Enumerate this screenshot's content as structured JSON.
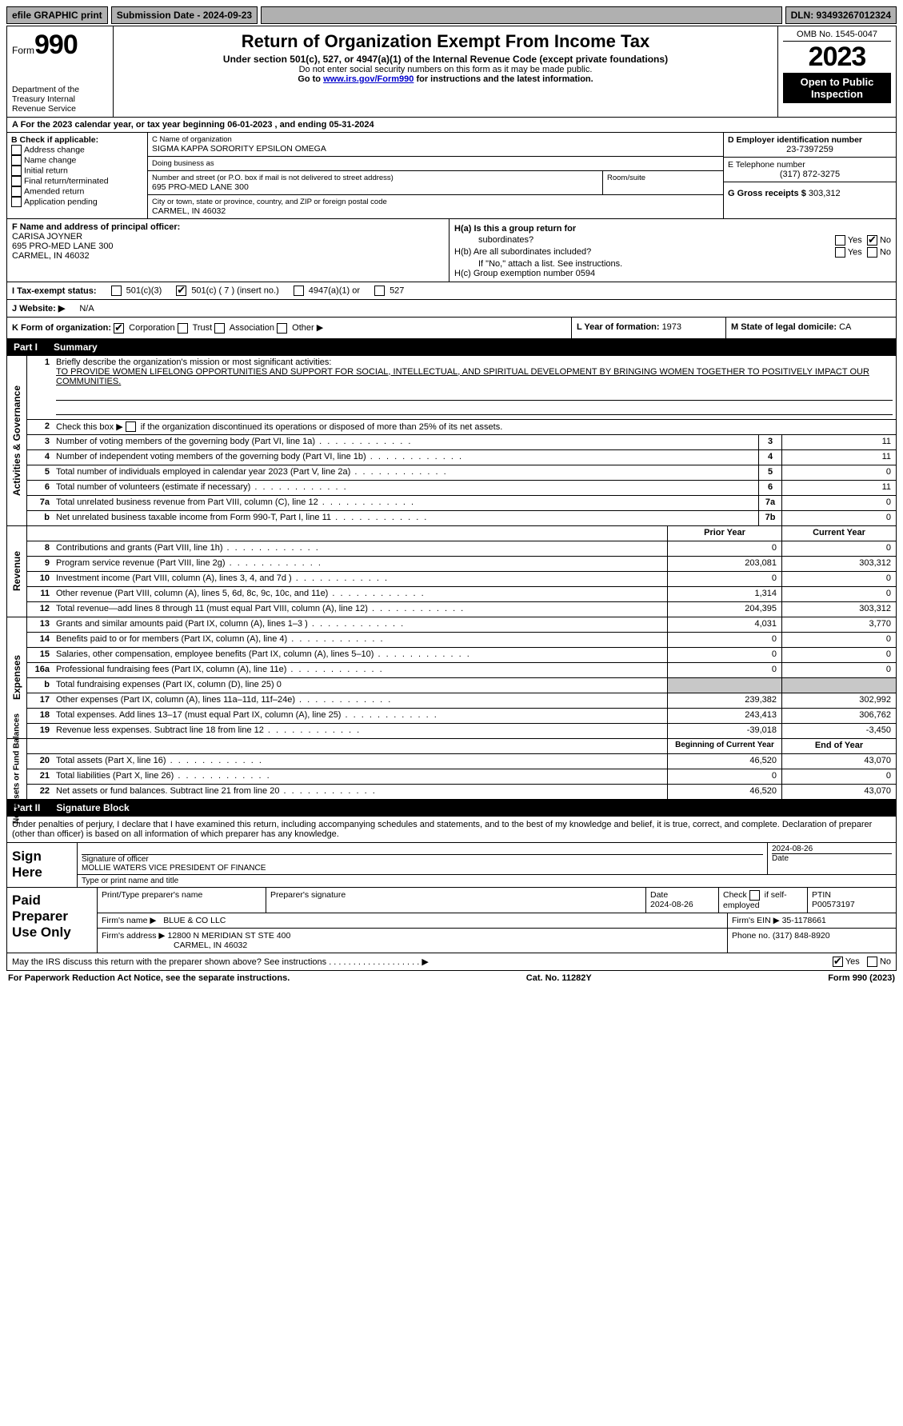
{
  "topbar": {
    "efile": "efile GRAPHIC print",
    "submission": "Submission Date - 2024-09-23",
    "dln": "DLN: 93493267012324"
  },
  "header": {
    "form_prefix": "Form",
    "form_number": "990",
    "dept": "Department of the Treasury\nInternal Revenue Service",
    "title": "Return of Organization Exempt From Income Tax",
    "sub1": "Under section 501(c), 527, or 4947(a)(1) of the Internal Revenue Code (except private foundations)",
    "sub2": "Do not enter social security numbers on this form as it may be made public.",
    "sub3_pre": "Go to ",
    "sub3_link": "www.irs.gov/Form990",
    "sub3_post": " for instructions and the latest information.",
    "omb": "OMB No. 1545-0047",
    "year": "2023",
    "inspect": "Open to Public Inspection"
  },
  "period": {
    "label_a": "A For the 2023 calendar year, or tax year beginning ",
    "begin": "06-01-2023",
    "mid": " , and ending ",
    "end": "05-31-2024"
  },
  "boxB": {
    "title": "B Check if applicable:",
    "items": [
      "Address change",
      "Name change",
      "Initial return",
      "Final return/terminated",
      "Amended return",
      "Application pending"
    ]
  },
  "boxC": {
    "name_label": "C Name of organization",
    "name": "SIGMA KAPPA SORORITY EPSILON OMEGA",
    "dba_label": "Doing business as",
    "dba": "",
    "street_label": "Number and street (or P.O. box if mail is not delivered to street address)",
    "street": "695 PRO-MED LANE 300",
    "room_label": "Room/suite",
    "room": "",
    "city_label": "City or town, state or province, country, and ZIP or foreign postal code",
    "city": "CARMEL, IN  46032"
  },
  "boxD": {
    "ein_label": "D Employer identification number",
    "ein": "23-7397259",
    "phone_label": "E Telephone number",
    "phone": "(317) 872-3275",
    "gross_label": "G Gross receipts $",
    "gross": "303,312"
  },
  "boxF": {
    "label": "F  Name and address of principal officer:",
    "name": "CARISA JOYNER",
    "addr1": "695 PRO-MED LANE 300",
    "addr2": "CARMEL, IN  46032"
  },
  "boxH": {
    "a_label": "H(a)  Is this a group return for",
    "a_label2": "subordinates?",
    "a_yes": "Yes",
    "a_no": "No",
    "b_label": "H(b)  Are all subordinates included?",
    "b_note": "If \"No,\" attach a list. See instructions.",
    "c_label": "H(c)  Group exemption number ",
    "c_arrow": "▶",
    "c_val": "0594"
  },
  "lineI": {
    "label": "I    Tax-exempt status:",
    "opt1": "501(c)(3)",
    "opt2": "501(c) ( 7 ) (insert no.)",
    "opt3": "4947(a)(1) or",
    "opt4": "527"
  },
  "lineJ": {
    "label": "J   Website: ▶",
    "val": "N/A"
  },
  "lineK": {
    "label": "K Form of organization:",
    "o1": "Corporation",
    "o2": "Trust",
    "o3": "Association",
    "o4": "Other ▶"
  },
  "lineL": {
    "label": "L Year of formation: ",
    "val": "1973"
  },
  "lineM": {
    "label": "M State of legal domicile: ",
    "val": "CA"
  },
  "part1": {
    "hdr_num": "Part I",
    "hdr_title": "Summary",
    "q1_label": "Briefly describe the organization's mission or most significant activities:",
    "q1_text": "TO PROVIDE WOMEN LIFELONG OPPORTUNITIES AND SUPPORT FOR SOCIAL, INTELLECTUAL, AND SPIRITUAL DEVELOPMENT BY BRINGING WOMEN TOGETHER TO POSITIVELY IMPACT OUR COMMUNITIES.",
    "q2": "Check this box ▶        if the organization discontinued its operations or disposed of more than 25% of its net assets."
  },
  "gov": {
    "vlabel": "Activities & Governance",
    "lines": [
      {
        "n": "3",
        "d": "Number of voting members of the governing body (Part VI, line 1a)",
        "box": "3",
        "v": "11"
      },
      {
        "n": "4",
        "d": "Number of independent voting members of the governing body (Part VI, line 1b)",
        "box": "4",
        "v": "11"
      },
      {
        "n": "5",
        "d": "Total number of individuals employed in calendar year 2023 (Part V, line 2a)",
        "box": "5",
        "v": "0"
      },
      {
        "n": "6",
        "d": "Total number of volunteers (estimate if necessary)",
        "box": "6",
        "v": "11"
      },
      {
        "n": "7a",
        "d": "Total unrelated business revenue from Part VIII, column (C), line 12",
        "box": "7a",
        "v": "0"
      },
      {
        "n": "b",
        "d": "Net unrelated business taxable income from Form 990-T, Part I, line 11",
        "box": "7b",
        "v": "0"
      }
    ]
  },
  "rev": {
    "vlabel": "Revenue",
    "hdr_prior": "Prior Year",
    "hdr_curr": "Current Year",
    "lines": [
      {
        "n": "8",
        "d": "Contributions and grants (Part VIII, line 1h)",
        "p": "0",
        "c": "0"
      },
      {
        "n": "9",
        "d": "Program service revenue (Part VIII, line 2g)",
        "p": "203,081",
        "c": "303,312"
      },
      {
        "n": "10",
        "d": "Investment income (Part VIII, column (A), lines 3, 4, and 7d )",
        "p": "0",
        "c": "0"
      },
      {
        "n": "11",
        "d": "Other revenue (Part VIII, column (A), lines 5, 6d, 8c, 9c, 10c, and 11e)",
        "p": "1,314",
        "c": "0"
      },
      {
        "n": "12",
        "d": "Total revenue—add lines 8 through 11 (must equal Part VIII, column (A), line 12)",
        "p": "204,395",
        "c": "303,312"
      }
    ]
  },
  "exp": {
    "vlabel": "Expenses",
    "lines": [
      {
        "n": "13",
        "d": "Grants and similar amounts paid (Part IX, column (A), lines 1–3 )",
        "p": "4,031",
        "c": "3,770"
      },
      {
        "n": "14",
        "d": "Benefits paid to or for members (Part IX, column (A), line 4)",
        "p": "0",
        "c": "0"
      },
      {
        "n": "15",
        "d": "Salaries, other compensation, employee benefits (Part IX, column (A), lines 5–10)",
        "p": "0",
        "c": "0"
      },
      {
        "n": "16a",
        "d": "Professional fundraising fees (Part IX, column (A), line 11e)",
        "p": "0",
        "c": "0"
      },
      {
        "n": "b",
        "d": "Total fundraising expenses (Part IX, column (D), line 25) 0",
        "p": "",
        "c": "",
        "grey": true
      },
      {
        "n": "17",
        "d": "Other expenses (Part IX, column (A), lines 11a–11d, 11f–24e)",
        "p": "239,382",
        "c": "302,992"
      },
      {
        "n": "18",
        "d": "Total expenses. Add lines 13–17 (must equal Part IX, column (A), line 25)",
        "p": "243,413",
        "c": "306,762"
      },
      {
        "n": "19",
        "d": "Revenue less expenses. Subtract line 18 from line 12",
        "p": "-39,018",
        "c": "-3,450"
      }
    ]
  },
  "net": {
    "vlabel": "Net Assets or Fund Balances",
    "hdr_begin": "Beginning of Current Year",
    "hdr_end": "End of Year",
    "lines": [
      {
        "n": "20",
        "d": "Total assets (Part X, line 16)",
        "p": "46,520",
        "c": "43,070"
      },
      {
        "n": "21",
        "d": "Total liabilities (Part X, line 26)",
        "p": "0",
        "c": "0"
      },
      {
        "n": "22",
        "d": "Net assets or fund balances. Subtract line 21 from line 20",
        "p": "46,520",
        "c": "43,070"
      }
    ]
  },
  "part2": {
    "hdr_num": "Part II",
    "hdr_title": "Signature Block"
  },
  "sig": {
    "decl": "Under penalties of perjury, I declare that I have examined this return, including accompanying schedules and statements, and to the best of my knowledge and belief, it is true, correct, and complete. Declaration of preparer (other than officer) is based on all information of which preparer has any knowledge.",
    "sign_here": "Sign Here",
    "sig_officer_lbl": "Signature of officer",
    "officer_name": "MOLLIE WATERS  VICE PRESIDENT OF FINANCE",
    "type_lbl": "Type or print name and title",
    "date_lbl": "2024-08-26",
    "date_word": "Date"
  },
  "paid": {
    "label": "Paid Preparer Use Only",
    "l1_a": "Print/Type preparer's name",
    "l1_b": "Preparer's signature",
    "l1_c_lbl": "Date",
    "l1_c": "2024-08-26",
    "l1_d": "Check         if self-employed",
    "l1_e_lbl": "PTIN",
    "l1_e": "P00573197",
    "l2_a_lbl": "Firm's name    ▶",
    "l2_a": "BLUE & CO LLC",
    "l2_b_lbl": "Firm's EIN ▶",
    "l2_b": "35-1178661",
    "l3_a_lbl": "Firm's address ▶",
    "l3_a": "12800 N MERIDIAN ST STE 400",
    "l3_a2": "CARMEL, IN  46032",
    "l3_b_lbl": "Phone no.",
    "l3_b": "(317) 848-8920"
  },
  "discuss": {
    "q": "May the IRS discuss this return with the preparer shown above? See instructions .  .  .  .  .  .  .  .  .  .  .  .  .  .  .  .  .  .  . ▶",
    "yes": "Yes",
    "no": "No"
  },
  "footer": {
    "left": "For Paperwork Reduction Act Notice, see the separate instructions.",
    "mid": "Cat. No. 11282Y",
    "right": "Form 990 (2023)"
  }
}
